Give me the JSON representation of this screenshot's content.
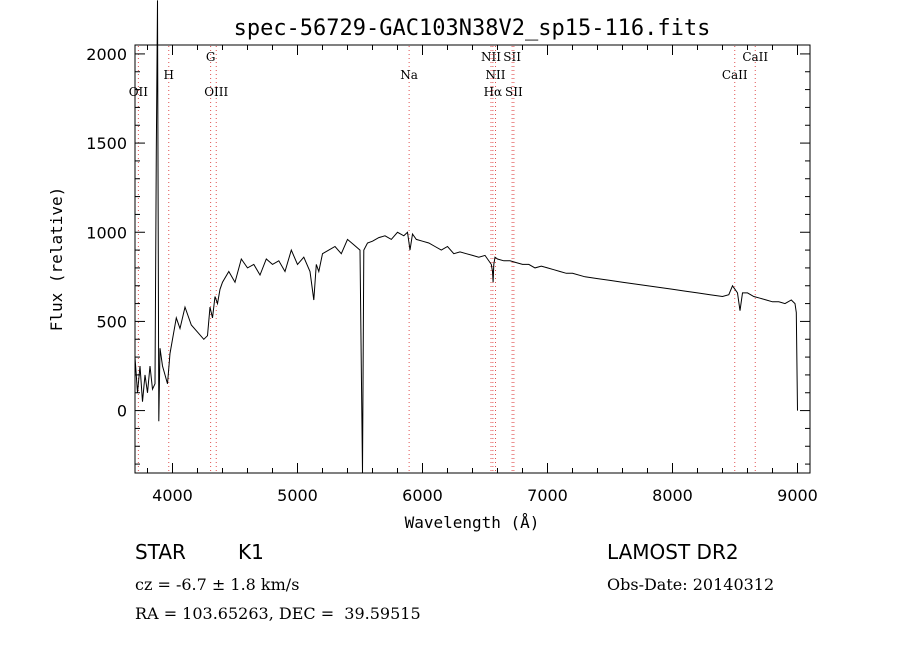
{
  "chart_data": {
    "type": "line",
    "title": "spec-56729-GAC103N38V2_sp15-116.fits",
    "xlabel": "Wavelength (Å)",
    "ylabel": "Flux (relative)",
    "xlim": [
      3700,
      9100
    ],
    "ylim": [
      -350,
      2050
    ],
    "xticks": [
      4000,
      5000,
      6000,
      7000,
      8000,
      9000
    ],
    "yticks": [
      0,
      500,
      1000,
      1500,
      2000
    ],
    "grid": false,
    "series": [
      {
        "x": [
          3700,
          3720,
          3740,
          3760,
          3780,
          3800,
          3820,
          3840,
          3860,
          3870,
          3880,
          3890,
          3900,
          3920,
          3940,
          3960,
          3980,
          4000,
          4030,
          4060,
          4100,
          4150,
          4200,
          4250,
          4280,
          4300,
          4320,
          4340,
          4360,
          4380,
          4400,
          4450,
          4500,
          4550,
          4600,
          4650,
          4700,
          4750,
          4800,
          4850,
          4900,
          4950,
          5000,
          5050,
          5100,
          5130,
          5150,
          5170,
          5200,
          5250,
          5300,
          5350,
          5400,
          5450,
          5500,
          5520,
          5530,
          5560,
          5600,
          5650,
          5700,
          5750,
          5800,
          5850,
          5880,
          5900,
          5920,
          5950,
          6000,
          6050,
          6100,
          6150,
          6200,
          6250,
          6300,
          6350,
          6400,
          6450,
          6500,
          6550,
          6560,
          6565,
          6570,
          6580,
          6600,
          6650,
          6700,
          6750,
          6800,
          6850,
          6900,
          6950,
          7000,
          7050,
          7100,
          7150,
          7200,
          7300,
          7400,
          7500,
          7600,
          7700,
          7800,
          7900,
          8000,
          8100,
          8200,
          8300,
          8400,
          8450,
          8480,
          8500,
          8520,
          8540,
          8560,
          8600,
          8650,
          8700,
          8750,
          8800,
          8850,
          8900,
          8950,
          8980,
          8990,
          9000
        ],
        "values": [
          300,
          100,
          250,
          50,
          200,
          100,
          250,
          120,
          150,
          1450,
          2300,
          -60,
          350,
          250,
          200,
          150,
          320,
          400,
          520,
          460,
          580,
          480,
          440,
          400,
          420,
          580,
          520,
          640,
          600,
          680,
          720,
          780,
          720,
          850,
          800,
          820,
          760,
          850,
          820,
          840,
          780,
          900,
          820,
          860,
          780,
          620,
          820,
          780,
          880,
          900,
          920,
          880,
          960,
          930,
          900,
          -350,
          900,
          940,
          950,
          970,
          980,
          960,
          1000,
          980,
          1000,
          900,
          990,
          960,
          950,
          940,
          920,
          900,
          920,
          880,
          890,
          880,
          870,
          860,
          870,
          820,
          780,
          720,
          820,
          860,
          850,
          840,
          840,
          830,
          820,
          820,
          800,
          810,
          800,
          790,
          780,
          770,
          770,
          750,
          740,
          730,
          720,
          710,
          700,
          690,
          680,
          670,
          660,
          650,
          640,
          650,
          700,
          680,
          660,
          560,
          660,
          660,
          640,
          630,
          620,
          610,
          610,
          600,
          620,
          600,
          550,
          0
        ]
      }
    ],
    "line_markers": [
      {
        "label": "OII",
        "x": 3727,
        "row": 2
      },
      {
        "label": "H",
        "x": 3970,
        "row": 1
      },
      {
        "label": "G",
        "x": 4305,
        "row": 0
      },
      {
        "label": "OIII",
        "x": 4350,
        "row": 2
      },
      {
        "label": "Na",
        "x": 5893,
        "row": 1
      },
      {
        "label": "NII",
        "x": 6548,
        "row": 0
      },
      {
        "label": "NII",
        "x": 6584,
        "row": 1
      },
      {
        "label": "Hα",
        "x": 6563,
        "row": 2
      },
      {
        "label": "SII",
        "x": 6717,
        "row": 0
      },
      {
        "label": "SII",
        "x": 6731,
        "row": 2
      },
      {
        "label": "CaII",
        "x": 8498,
        "row": 1
      },
      {
        "label": "CaII",
        "x": 8662,
        "row": 0
      }
    ]
  },
  "info": {
    "object_class": "STAR",
    "subclass": "K1",
    "survey": "LAMOST DR2",
    "redshift": "cz = -6.7 ± 1.8 km/s",
    "obs_date": "Obs-Date: 20140312",
    "coords": "RA = 103.65263, DEC =  39.59515"
  },
  "colors": {
    "line_marker": "#e05050",
    "spectrum": "#000000",
    "axes": "#000000"
  }
}
